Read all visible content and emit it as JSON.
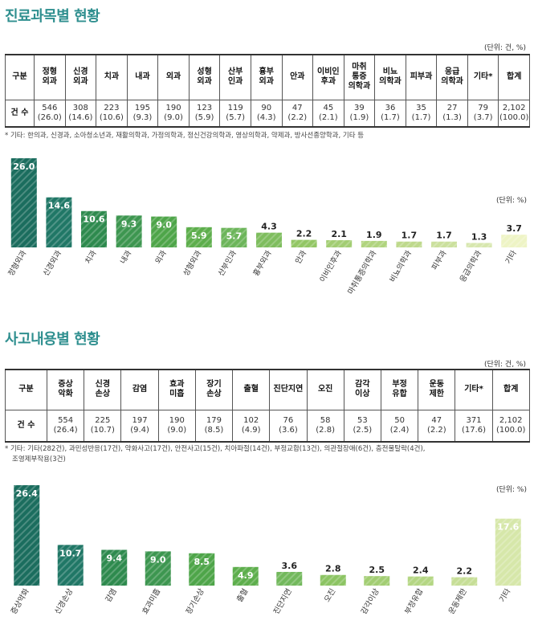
{
  "section1": {
    "title": "진료과목별 현황",
    "unit": "(단위: 건, %)",
    "headers": [
      "구분",
      "정형\n외과",
      "신경\n외과",
      "치과",
      "내과",
      "외과",
      "성형\n외과",
      "산부\n인과",
      "흉부\n외과",
      "안과",
      "이비인\n후과",
      "마취\n통증\n의학과",
      "비뇨\n의학과",
      "피부과",
      "응급\n의학과",
      "기타*",
      "합계"
    ],
    "row_label": "건 수",
    "values": [
      "546\n(26.0)",
      "308\n(14.6)",
      "223\n(10.6)",
      "195\n(9.3)",
      "190\n(9.0)",
      "123\n(5.9)",
      "119\n(5.7)",
      "90\n(4.3)",
      "47\n(2.2)",
      "45\n(2.1)",
      "39\n(1.9)",
      "36\n(1.7)",
      "35\n(1.7)",
      "27\n(1.3)",
      "79\n(3.7)",
      "2,102\n(100.0)"
    ],
    "note": "* 기타: 한의과, 신경과, 소아청소년과, 재활의학과, 가정의학과, 정신건강의학과, 영상의학과, 약제과, 방사선종양학과, 기타 등",
    "chart_unit": "(단위: %)"
  },
  "section2": {
    "title": "사고내용별 현황",
    "unit": "(단위: 건, %)",
    "headers": [
      "구분",
      "증상\n악화",
      "신경\n손상",
      "감염",
      "효과\n미흡",
      "장기\n손상",
      "출혈",
      "진단지연",
      "오진",
      "감각\n이상",
      "부정\n유합",
      "운동\n제한",
      "기타*",
      "합계"
    ],
    "row_label": "건 수",
    "values": [
      "554\n(26.4)",
      "225\n(10.7)",
      "197\n(9.4)",
      "190\n(9.0)",
      "179\n(8.5)",
      "102\n(4.9)",
      "76\n(3.6)",
      "58\n(2.8)",
      "53\n(2.5)",
      "50\n(2.4)",
      "47\n(2.2)",
      "371\n(17.6)",
      "2,102\n(100.0)"
    ],
    "note_lines": [
      "* 기타: 기타(282건), 과민성반응(17건), 약화사고(17건), 안전사고(15건), 치아파절(14건), 부정교합(13건), 의관절장애(6건), 충전물탈락(4건),",
      "조영제부작용(3건)"
    ],
    "chart_unit": "(단위: %)"
  },
  "chart_data": [
    {
      "type": "bar",
      "title": "",
      "xlabel": "",
      "ylabel": "",
      "categories": [
        "정형외과",
        "신경외과",
        "치과",
        "내과",
        "외과",
        "성형외과",
        "산부인과",
        "흉부외과",
        "안과",
        "이비인후과",
        "마취통증의학과",
        "비뇨의학과",
        "피부과",
        "응급의학과",
        "기타"
      ],
      "values": [
        26.0,
        14.6,
        10.6,
        9.3,
        9.0,
        5.9,
        5.7,
        4.3,
        2.2,
        2.1,
        1.9,
        1.7,
        1.7,
        1.3,
        3.7
      ],
      "value_labels": [
        "26.0",
        "14.6",
        "10.6",
        "9.3",
        "9.0",
        "5.9",
        "5.7",
        "4.3",
        "2.2",
        "2.1",
        "1.9",
        "1.7",
        "1.7",
        "1.3",
        "3.7"
      ],
      "ylim": [
        0,
        26.0
      ],
      "grid": false,
      "legend": "none",
      "colors": [
        "#1b6d5e",
        "#207766",
        "#2e8a4e",
        "#3d9650",
        "#4ea549",
        "#5dae4c",
        "#6cb55a",
        "#7ebd5e",
        "#92c664",
        "#a2cd72",
        "#b0d47e",
        "#bed98c",
        "#cbe09d",
        "#d7e7ae",
        "#eef4c5"
      ]
    },
    {
      "type": "bar",
      "title": "",
      "xlabel": "",
      "ylabel": "",
      "categories": [
        "증상악화",
        "신경손상",
        "감염",
        "효과미흡",
        "장기손상",
        "출혈",
        "진단지연",
        "오진",
        "감각이상",
        "부정유합",
        "운동제한",
        "기타"
      ],
      "values": [
        26.4,
        10.7,
        9.4,
        9.0,
        8.5,
        4.9,
        3.6,
        2.8,
        2.5,
        2.4,
        2.2,
        17.6
      ],
      "value_labels": [
        "26.4",
        "10.7",
        "9.4",
        "9.0",
        "8.5",
        "4.9",
        "3.6",
        "2.8",
        "2.5",
        "2.4",
        "2.2",
        "17.6"
      ],
      "ylim": [
        0,
        26.4
      ],
      "grid": false,
      "legend": "none",
      "colors": [
        "#1b6d5e",
        "#207766",
        "#2e8a4e",
        "#3d9650",
        "#4ea549",
        "#5dae4c",
        "#72b85c",
        "#8cc463",
        "#a2cd72",
        "#b4d683",
        "#c6de96",
        "#d6e7a9"
      ]
    }
  ]
}
